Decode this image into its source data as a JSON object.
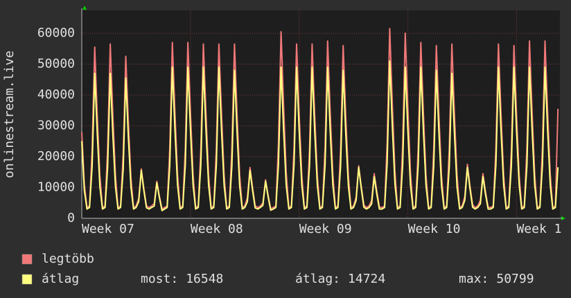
{
  "chart_data": {
    "type": "line",
    "y_label": "onlinestream.live",
    "x": [
      0,
      4,
      8,
      12,
      16,
      20,
      24,
      28,
      32,
      36,
      40,
      44,
      48,
      52,
      56,
      60,
      64,
      68,
      72,
      76,
      80,
      84,
      88,
      92,
      96,
      100,
      104,
      108,
      112,
      116,
      120,
      124,
      128,
      132,
      136,
      140,
      144,
      148,
      152,
      156,
      160,
      164,
      168,
      172,
      176,
      180,
      184,
      188,
      192,
      196,
      200,
      204,
      208,
      212,
      216,
      220,
      224,
      228,
      232,
      236,
      240,
      244,
      248,
      252,
      256,
      260,
      264,
      268,
      272,
      276,
      280,
      284,
      288,
      292,
      296,
      300,
      304,
      308,
      312,
      316,
      320,
      324,
      328,
      332,
      336,
      340,
      344,
      348,
      352,
      356,
      360,
      364,
      368,
      372,
      376,
      380,
      384,
      388,
      392,
      396,
      400,
      404,
      408,
      412,
      416,
      420,
      424,
      428,
      432,
      436,
      440,
      444,
      448,
      452,
      456,
      460,
      464,
      468,
      472,
      476,
      480,
      484,
      488,
      492,
      496,
      500,
      504,
      508,
      512,
      516,
      520,
      524,
      528,
      532,
      536,
      540,
      544,
      548,
      552,
      556,
      560,
      564,
      568,
      572,
      576,
      580,
      584,
      588,
      592,
      596,
      600,
      604,
      608,
      612,
      616,
      620,
      624,
      628,
      632,
      636,
      640,
      644,
      648,
      652,
      656,
      660,
      664,
      668,
      672,
      676,
      680,
      684,
      688,
      692,
      696,
      700,
      704,
      708,
      712,
      716,
      720,
      724,
      728,
      732,
      736
    ],
    "series": [
      {
        "name": "legtöbb",
        "color": "#f07878",
        "values": [
          28000,
          11000,
          3500,
          4000,
          22200,
          55500,
          33300,
          13900,
          3500,
          4000,
          22600,
          56500,
          33900,
          14100,
          3500,
          4000,
          21000,
          52500,
          31500,
          13100,
          3500,
          4000,
          6400,
          16000,
          9600,
          4000,
          3500,
          4000,
          4800,
          12000,
          7200,
          3000,
          3500,
          4000,
          22800,
          57000,
          34200,
          14300,
          3500,
          4000,
          22800,
          57000,
          34200,
          14300,
          3500,
          4000,
          22600,
          56500,
          33900,
          14100,
          3500,
          4000,
          22600,
          56500,
          33900,
          14100,
          3500,
          4000,
          22600,
          56500,
          33900,
          14100,
          3500,
          4000,
          6600,
          16500,
          9900,
          4100,
          3500,
          4000,
          5000,
          12500,
          7500,
          3100,
          3500,
          4000,
          24200,
          60500,
          36300,
          15100,
          3500,
          4000,
          22600,
          56500,
          33900,
          14100,
          3500,
          4000,
          22600,
          56500,
          33900,
          14100,
          3500,
          4000,
          23000,
          57500,
          34500,
          14400,
          3500,
          4000,
          22400,
          56000,
          33600,
          14000,
          3500,
          4000,
          6800,
          17000,
          10200,
          4300,
          3500,
          4000,
          5800,
          14500,
          8700,
          3600,
          3500,
          4000,
          24600,
          61500,
          36900,
          15400,
          3500,
          4000,
          24000,
          60000,
          36000,
          15000,
          3500,
          4000,
          22800,
          57000,
          34200,
          14300,
          3500,
          4000,
          22400,
          56000,
          33600,
          14000,
          3500,
          4000,
          22600,
          56500,
          33900,
          14100,
          3500,
          4000,
          7000,
          17500,
          10500,
          4400,
          3500,
          4000,
          5800,
          14500,
          8700,
          3600,
          3500,
          4000,
          22600,
          56500,
          33900,
          14100,
          3500,
          4000,
          22400,
          56000,
          33600,
          14000,
          3500,
          4000,
          23000,
          57500,
          34500,
          14400,
          3500,
          4000,
          23000,
          57500,
          34500,
          14400,
          3500,
          4000,
          35500
        ]
      },
      {
        "name": "átlag",
        "color": "#ffff80",
        "values": [
          25000,
          9000,
          3000,
          3500,
          16500,
          47000,
          27300,
          10300,
          3000,
          3500,
          16500,
          47000,
          27300,
          10300,
          3000,
          3500,
          15900,
          45500,
          26400,
          10000,
          3000,
          3500,
          5400,
          15500,
          9000,
          3400,
          3000,
          3500,
          4000,
          11500,
          6700,
          2500,
          3000,
          3500,
          17200,
          49000,
          28400,
          10800,
          3000,
          3500,
          17200,
          49000,
          28400,
          10800,
          3000,
          3500,
          17200,
          49000,
          28400,
          10800,
          3000,
          3500,
          17200,
          49000,
          28400,
          10800,
          3000,
          3500,
          16800,
          48000,
          27800,
          10600,
          3000,
          3500,
          5400,
          15500,
          9000,
          3400,
          3000,
          3500,
          4200,
          12000,
          7000,
          2600,
          3000,
          3500,
          17200,
          49000,
          28400,
          10800,
          3000,
          3500,
          17200,
          49000,
          28400,
          10800,
          3000,
          3500,
          17200,
          49000,
          28400,
          10800,
          3000,
          3500,
          17200,
          49000,
          28400,
          10800,
          3000,
          3500,
          16800,
          48000,
          27800,
          10600,
          3000,
          3500,
          5800,
          16500,
          9600,
          3600,
          3000,
          3500,
          4700,
          13500,
          7800,
          3000,
          3000,
          3500,
          17900,
          51000,
          29600,
          11200,
          3000,
          3500,
          17200,
          49000,
          28400,
          10800,
          3000,
          3500,
          17200,
          49000,
          28400,
          10800,
          3000,
          3500,
          16800,
          48000,
          27800,
          10600,
          3000,
          3500,
          16500,
          47000,
          27300,
          10300,
          3000,
          3500,
          5800,
          16500,
          9600,
          3600,
          3000,
          3500,
          4700,
          13500,
          7800,
          3000,
          3000,
          3500,
          17200,
          49000,
          28400,
          10800,
          3000,
          3500,
          17200,
          49000,
          28400,
          10800,
          3000,
          3500,
          17200,
          49000,
          28400,
          10800,
          3000,
          3500,
          17200,
          49000,
          28400,
          10800,
          3000,
          3500,
          16548
        ]
      }
    ],
    "xlim": [
      0,
      739
    ],
    "xticks": [
      {
        "value": 0,
        "label": "Week 07"
      },
      {
        "value": 168,
        "label": "Week 08"
      },
      {
        "value": 336,
        "label": "Week 09"
      },
      {
        "value": 504,
        "label": "Week 10"
      },
      {
        "value": 672,
        "label": "Week 1"
      }
    ],
    "ylim": [
      0,
      67400
    ],
    "yticks": [
      0,
      10000,
      20000,
      30000,
      40000,
      50000,
      60000
    ],
    "grid": true,
    "stats": [
      {
        "label": "most:",
        "value": 16548
      },
      {
        "label": "átlag:",
        "value": 14724
      },
      {
        "label": "max:",
        "value": 50799
      }
    ]
  }
}
